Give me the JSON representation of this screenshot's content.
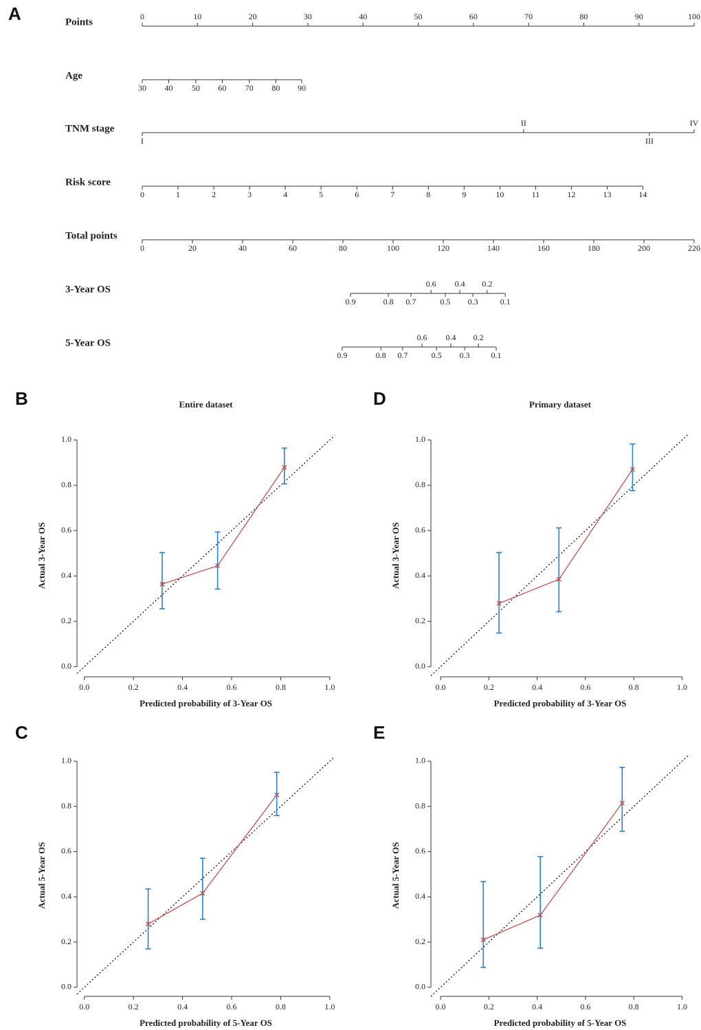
{
  "chart_data": [
    {
      "type": "nomogram",
      "panel": "A",
      "points_range": [
        0,
        100
      ],
      "total_range": [
        0,
        220
      ],
      "rows": [
        {
          "name": "Points",
          "scale": "points",
          "label_side": "above",
          "ticks": [
            0,
            10,
            20,
            30,
            40,
            50,
            60,
            70,
            80,
            90,
            100
          ]
        },
        {
          "name": "Age",
          "scale": "points",
          "label_side": "below",
          "ticks": [
            30,
            40,
            50,
            60,
            70,
            80,
            90
          ],
          "at": [
            0,
            4.8,
            9.7,
            14.5,
            19.4,
            24.2,
            28.9
          ]
        },
        {
          "name": "TNM stage",
          "scale": "points",
          "label_side": [
            "below",
            "above",
            "below",
            "above"
          ],
          "ticks": [
            "I",
            "II",
            "III",
            "IV"
          ],
          "at": [
            0,
            69.1,
            91.9,
            100
          ]
        },
        {
          "name": "Risk score",
          "scale": "points",
          "label_side": "below",
          "ticks": [
            0,
            1,
            2,
            3,
            4,
            5,
            6,
            7,
            8,
            9,
            10,
            11,
            12,
            13,
            14
          ],
          "at": [
            0,
            6.48,
            12.96,
            19.44,
            25.92,
            32.4,
            38.88,
            45.36,
            51.84,
            58.32,
            64.8,
            71.28,
            77.76,
            84.24,
            90.7
          ]
        },
        {
          "name": "Total points",
          "scale": "total",
          "label_side": "below",
          "ticks": [
            0,
            20,
            40,
            60,
            80,
            100,
            120,
            140,
            160,
            180,
            200,
            220
          ]
        },
        {
          "name": "3-Year OS",
          "scale": "total",
          "label_side": [
            "below",
            "below",
            "below",
            "above",
            "below",
            "above",
            "below",
            "above",
            "below"
          ],
          "ticks": [
            0.9,
            0.8,
            0.7,
            0.6,
            0.5,
            0.4,
            0.3,
            0.2,
            0.1
          ],
          "at": [
            83.0,
            98.1,
            107.1,
            115.1,
            120.8,
            126.6,
            131.8,
            137.5,
            144.7
          ]
        },
        {
          "name": "5-Year OS",
          "scale": "total",
          "label_side": [
            "below",
            "below",
            "below",
            "above",
            "below",
            "above",
            "below",
            "above",
            "below"
          ],
          "ticks": [
            0.9,
            0.8,
            0.7,
            0.6,
            0.5,
            0.4,
            0.3,
            0.2,
            0.1
          ],
          "at": [
            79.7,
            95.1,
            103.8,
            111.5,
            117.3,
            123.0,
            128.5,
            134.0,
            141.1
          ]
        }
      ]
    },
    {
      "type": "calibration",
      "panel": "B",
      "title": "Entire dataset",
      "xlabel": "Predicted probability of 3-Year OS",
      "ylabel": "Actual 3-Year OS",
      "xlim": [
        -0.03,
        1.02
      ],
      "ylim": [
        -0.045,
        1.025
      ],
      "xticks": [
        {
          "value": 0,
          "label": "0.0"
        },
        {
          "value": 0.2,
          "label": "0.2"
        },
        {
          "value": 0.4,
          "label": "0.4"
        },
        {
          "value": 0.6,
          "label": "0.6"
        },
        {
          "value": 0.8,
          "label": "0.8"
        },
        {
          "value": 1,
          "label": "1.0"
        }
      ],
      "yticks": [
        {
          "value": 0,
          "label": "0.0"
        },
        {
          "value": 0.2,
          "label": "0.2"
        },
        {
          "value": 0.4,
          "label": "0.4"
        },
        {
          "value": 0.6,
          "label": "0.6"
        },
        {
          "value": 0.8,
          "label": "0.8"
        },
        {
          "value": 1,
          "label": "1.0"
        }
      ],
      "line_color": "#c0504d",
      "error_color": "#2b7fd0",
      "x": [
        0.317,
        0.543,
        0.815
      ],
      "values": [
        0.364,
        0.445,
        0.879
      ],
      "lower": [
        0.255,
        0.342,
        0.806
      ],
      "upper": [
        0.503,
        0.594,
        0.964
      ]
    },
    {
      "type": "calibration",
      "panel": "D",
      "title": "Primary dataset",
      "xlabel": "Predicted probability of 3-Year OS",
      "ylabel": "Actual 3-Year OS",
      "xlim": [
        -0.04,
        1.03
      ],
      "ylim": [
        -0.045,
        1.025
      ],
      "xticks": [
        {
          "value": 0,
          "label": "0.0"
        },
        {
          "value": 0.2,
          "label": "0.2"
        },
        {
          "value": 0.4,
          "label": "0.4"
        },
        {
          "value": 0.6,
          "label": "0.6"
        },
        {
          "value": 0.8,
          "label": "0.8"
        },
        {
          "value": 1,
          "label": "1.0"
        }
      ],
      "yticks": [
        {
          "value": 0,
          "label": "0.0"
        },
        {
          "value": 0.2,
          "label": "0.2"
        },
        {
          "value": 0.4,
          "label": "0.4"
        },
        {
          "value": 0.6,
          "label": "0.6"
        },
        {
          "value": 0.8,
          "label": "0.8"
        },
        {
          "value": 1,
          "label": "1.0"
        }
      ],
      "line_color": "#c0504d",
      "error_color": "#2b7fd0",
      "x": [
        0.242,
        0.49,
        0.795
      ],
      "values": [
        0.279,
        0.385,
        0.87
      ],
      "lower": [
        0.148,
        0.242,
        0.776
      ],
      "upper": [
        0.503,
        0.612,
        0.982
      ]
    },
    {
      "type": "calibration",
      "panel": "C",
      "xlabel": "Predicted probability of 5-Year OS",
      "ylabel": "Actual 5-Year OS",
      "xlim": [
        -0.03,
        1.02
      ],
      "ylim": [
        -0.04,
        1.03
      ],
      "xticks": [
        {
          "value": 0,
          "label": "0.0"
        },
        {
          "value": 0.2,
          "label": "0.2"
        },
        {
          "value": 0.4,
          "label": "0.4"
        },
        {
          "value": 0.6,
          "label": "0.6"
        },
        {
          "value": 0.8,
          "label": "0.8"
        },
        {
          "value": 1,
          "label": "1.0"
        }
      ],
      "yticks": [
        {
          "value": 0,
          "label": "0.0"
        },
        {
          "value": 0.2,
          "label": "0.2"
        },
        {
          "value": 0.4,
          "label": "0.4"
        },
        {
          "value": 0.6,
          "label": "0.6"
        },
        {
          "value": 0.8,
          "label": "0.8"
        },
        {
          "value": 1,
          "label": "1.0"
        }
      ],
      "line_color": "#c0504d",
      "error_color": "#2b7fd0",
      "x": [
        0.26,
        0.482,
        0.784
      ],
      "values": [
        0.28,
        0.416,
        0.851
      ],
      "lower": [
        0.17,
        0.301,
        0.76
      ],
      "upper": [
        0.435,
        0.571,
        0.951
      ]
    },
    {
      "type": "calibration",
      "panel": "E",
      "xlabel": "Predicted probability of 5-Year OS",
      "ylabel": "Actual 5-Year OS",
      "xlim": [
        -0.04,
        1.03
      ],
      "ylim": [
        -0.04,
        1.03
      ],
      "xticks": [
        {
          "value": 0,
          "label": "0.0"
        },
        {
          "value": 0.2,
          "label": "0.2"
        },
        {
          "value": 0.4,
          "label": "0.4"
        },
        {
          "value": 0.6,
          "label": "0.6"
        },
        {
          "value": 0.8,
          "label": "0.8"
        },
        {
          "value": 1,
          "label": "1.0"
        }
      ],
      "yticks": [
        {
          "value": 0,
          "label": "0.0"
        },
        {
          "value": 0.2,
          "label": "0.2"
        },
        {
          "value": 0.4,
          "label": "0.4"
        },
        {
          "value": 0.6,
          "label": "0.6"
        },
        {
          "value": 0.8,
          "label": "0.8"
        },
        {
          "value": 1,
          "label": "1.0"
        }
      ],
      "line_color": "#c0504d",
      "error_color": "#2b7fd0",
      "x": [
        0.177,
        0.413,
        0.752
      ],
      "values": [
        0.21,
        0.319,
        0.815
      ],
      "lower": [
        0.088,
        0.173,
        0.69
      ],
      "upper": [
        0.468,
        0.578,
        0.973
      ]
    }
  ]
}
